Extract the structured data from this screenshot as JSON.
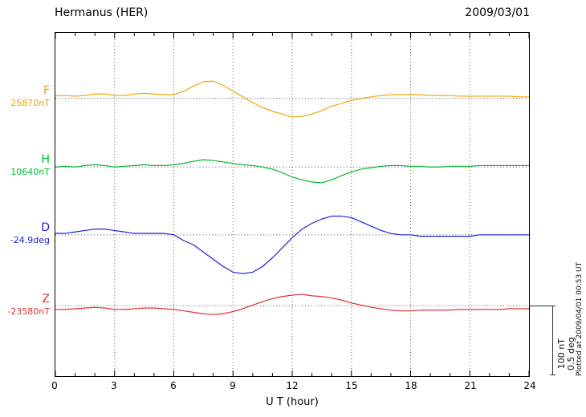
{
  "header": {
    "title": "Hermanus (HER)",
    "date": "2009/03/01"
  },
  "footer": {
    "xlabel": "U T (hour)",
    "plotted_at": "Plotted at 2009/04/01 00:53 UT"
  },
  "scale_bar": {
    "line1": "100 nT",
    "line2": "0.5 deg"
  },
  "chart_data": {
    "type": "line",
    "title": "Hermanus (HER)",
    "date": "2009/03/01",
    "xlabel": "U T (hour)",
    "x_range": [
      0,
      24
    ],
    "x_tick_step": 3,
    "x_tick_labels": [
      "0",
      "3",
      "6",
      "9",
      "12",
      "15",
      "18",
      "21",
      "24"
    ],
    "sample_step_hours": 0.5,
    "grid": "dotted vertical lines every 3 h; dotted horizontal baseline per trace",
    "legend_position": "left",
    "scale": {
      "nT_per_div": 100,
      "deg_per_div": 0.5
    },
    "series": [
      {
        "name": "F",
        "baseline_label": "25870nT",
        "unit": "nT",
        "color": "#f0a500",
        "values": [
          4,
          4,
          3,
          4,
          6,
          6,
          4,
          4,
          6,
          7,
          6,
          5,
          5,
          10,
          17,
          23,
          24,
          18,
          10,
          2,
          -6,
          -13,
          -18,
          -22,
          -26,
          -25,
          -22,
          -17,
          -11,
          -7,
          -3,
          0,
          2,
          4,
          5,
          5,
          5,
          5,
          4,
          4,
          4,
          3,
          3,
          3,
          3,
          3,
          3,
          2,
          2
        ]
      },
      {
        "name": "H",
        "baseline_label": "10640nT",
        "unit": "nT",
        "color": "#00b830",
        "values": [
          0,
          1,
          0,
          2,
          3,
          2,
          0,
          1,
          2,
          3,
          2,
          2,
          3,
          5,
          8,
          10,
          9,
          7,
          5,
          3,
          2,
          0,
          -3,
          -8,
          -14,
          -18,
          -21,
          -22,
          -18,
          -12,
          -7,
          -3,
          -1,
          1,
          2,
          2,
          1,
          1,
          0,
          0,
          1,
          1,
          1,
          2,
          2,
          2,
          2,
          2,
          2
        ]
      },
      {
        "name": "D",
        "baseline_label": "-24.9deg",
        "unit": "deg",
        "color": "#2020dd",
        "values": [
          0.01,
          0.01,
          0.02,
          0.03,
          0.04,
          0.04,
          0.03,
          0.02,
          0.01,
          0.01,
          0.01,
          0.01,
          0,
          -0.04,
          -0.07,
          -0.12,
          -0.17,
          -0.22,
          -0.26,
          -0.27,
          -0.26,
          -0.22,
          -0.16,
          -0.09,
          -0.02,
          0.04,
          0.08,
          0.11,
          0.13,
          0.13,
          0.12,
          0.09,
          0.06,
          0.03,
          0.01,
          0,
          0,
          -0.01,
          -0.01,
          -0.01,
          -0.01,
          -0.01,
          -0.01,
          0,
          0,
          0,
          0,
          0,
          0
        ]
      },
      {
        "name": "Z",
        "baseline_label": "-23580nT",
        "unit": "nT",
        "color": "#e03030",
        "values": [
          -5,
          -5,
          -4,
          -3,
          -2,
          -3,
          -5,
          -5,
          -4,
          -3,
          -3,
          -4,
          -5,
          -7,
          -9,
          -11,
          -12,
          -11,
          -8,
          -4,
          1,
          6,
          10,
          13,
          15,
          16,
          14,
          13,
          11,
          8,
          4,
          1,
          -2,
          -4,
          -6,
          -7,
          -7,
          -6,
          -6,
          -6,
          -6,
          -5,
          -5,
          -5,
          -5,
          -5,
          -4,
          -4,
          -4
        ]
      }
    ]
  }
}
